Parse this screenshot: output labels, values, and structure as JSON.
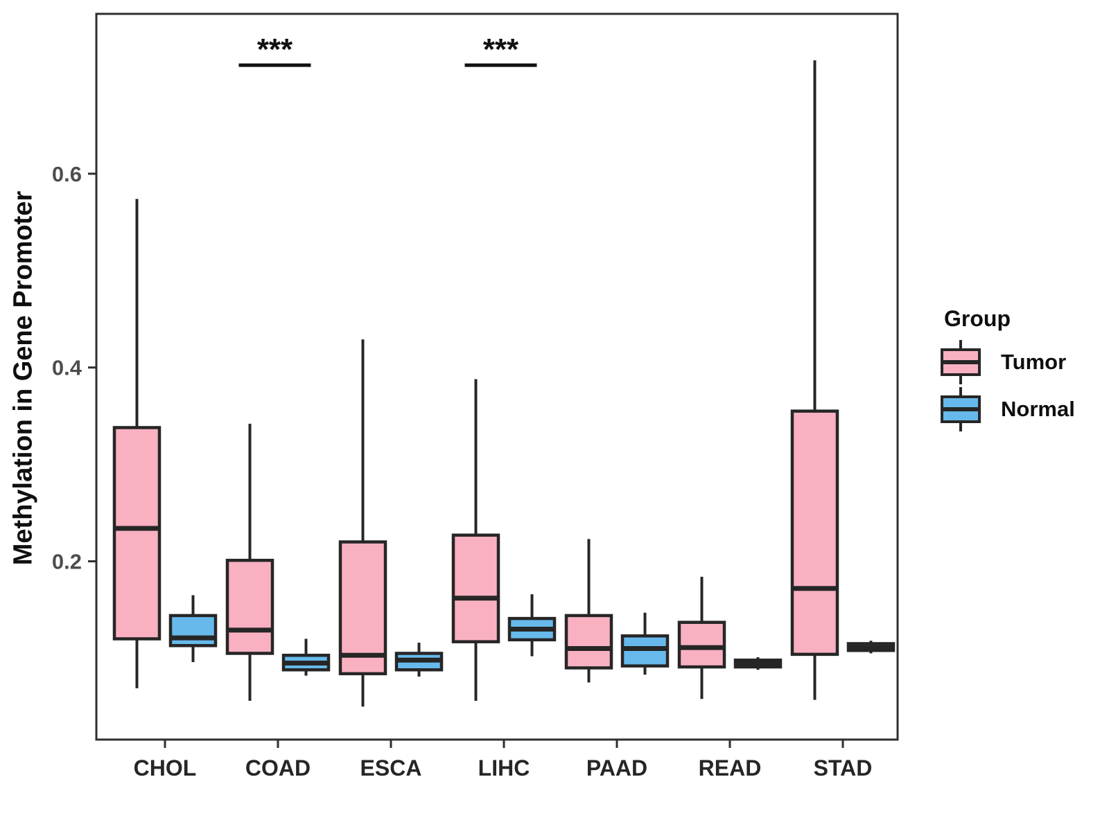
{
  "figure": {
    "legend": {
      "title": "Group",
      "items": [
        {
          "label": "Tumor",
          "color": "#F9B1C1"
        },
        {
          "label": "Normal",
          "color": "#67B9EC"
        }
      ]
    }
  },
  "chart_data": {
    "type": "boxplot",
    "title": "",
    "xlabel": "",
    "ylabel": "Methylation in Gene Promoter",
    "categories": [
      "CHOL",
      "COAD",
      "ESCA",
      "LIHC",
      "PAAD",
      "READ",
      "STAD"
    ],
    "ylim": [
      0.016,
      0.765
    ],
    "yticks": [
      {
        "value": 0.2,
        "label": "0.2"
      },
      {
        "value": 0.4,
        "label": "0.4"
      },
      {
        "value": 0.6,
        "label": "0.6"
      }
    ],
    "grid": false,
    "legend_position": "right",
    "stroke_color": "#262626",
    "series": [
      {
        "name": "Tumor",
        "fill": "#F9B1C1",
        "stats_order": [
          "min",
          "q1",
          "median",
          "q3",
          "max"
        ],
        "stats": [
          [
            0.069,
            0.12,
            0.234,
            0.338,
            0.574
          ],
          [
            0.056,
            0.105,
            0.129,
            0.201,
            0.342
          ],
          [
            0.05,
            0.084,
            0.103,
            0.22,
            0.429
          ],
          [
            0.056,
            0.117,
            0.162,
            0.227,
            0.388
          ],
          [
            0.075,
            0.09,
            0.11,
            0.144,
            0.223
          ],
          [
            0.058,
            0.091,
            0.111,
            0.137,
            0.184
          ],
          [
            0.057,
            0.104,
            0.172,
            0.355,
            0.717
          ]
        ]
      },
      {
        "name": "Normal",
        "fill": "#67B9EC",
        "stats_order": [
          "min",
          "q1",
          "median",
          "q3",
          "max"
        ],
        "stats": [
          [
            0.096,
            0.113,
            0.121,
            0.144,
            0.165
          ],
          [
            0.082,
            0.088,
            0.095,
            0.103,
            0.12
          ],
          [
            0.081,
            0.088,
            0.098,
            0.105,
            0.116
          ],
          [
            0.102,
            0.119,
            0.13,
            0.141,
            0.166
          ],
          [
            0.083,
            0.092,
            0.11,
            0.123,
            0.147
          ],
          [
            0.088,
            0.091,
            0.094,
            0.098,
            0.101
          ],
          [
            0.105,
            0.108,
            0.111,
            0.115,
            0.118
          ]
        ]
      }
    ],
    "significance": [
      {
        "category": "COAD",
        "label": "***",
        "bar_y": 0.712
      },
      {
        "category": "LIHC",
        "label": "***",
        "bar_y": 0.712
      }
    ]
  }
}
